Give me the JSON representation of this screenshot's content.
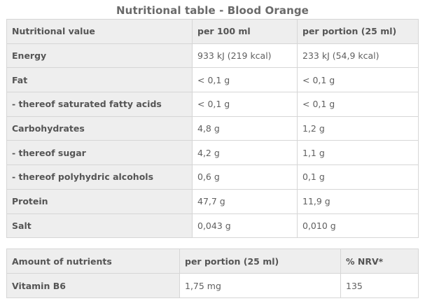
{
  "title": "Nutritional table - Blood Orange",
  "nutrition_table": {
    "headers": [
      "Nutritional value",
      "per 100 ml",
      "per portion (25 ml)"
    ],
    "rows": [
      {
        "label": "Energy",
        "per_100ml": "933 kJ (219 kcal)",
        "per_portion": "233 kJ (54,9 kcal)"
      },
      {
        "label": "Fat",
        "per_100ml": "< 0,1 g",
        "per_portion": "< 0,1 g"
      },
      {
        "label": "- thereof saturated fatty acids",
        "per_100ml": "< 0,1 g",
        "per_portion": "< 0,1 g"
      },
      {
        "label": "Carbohydrates",
        "per_100ml": "4,8 g",
        "per_portion": "1,2 g"
      },
      {
        "label": "- thereof sugar",
        "per_100ml": "4,2 g",
        "per_portion": "1,1 g"
      },
      {
        "label": "- thereof polyhydric alcohols",
        "per_100ml": "0,6 g",
        "per_portion": "0,1 g"
      },
      {
        "label": "Protein",
        "per_100ml": "47,7 g",
        "per_portion": "11,9 g"
      },
      {
        "label": "Salt",
        "per_100ml": "0,043 g",
        "per_portion": "0,010 g"
      }
    ]
  },
  "nrv_table": {
    "headers": [
      "Amount of nutrients",
      "per portion (25 ml)",
      "% NRV*"
    ],
    "rows": [
      {
        "label": "Vitamin B6",
        "per_portion": "1,75 mg",
        "nrv": "135"
      }
    ]
  },
  "colors": {
    "header_bg": "#eeeeee",
    "border": "#d6d6d6",
    "text": "#555555"
  }
}
